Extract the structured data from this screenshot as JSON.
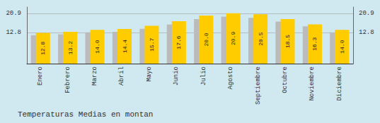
{
  "chart_data": {
    "type": "bar",
    "title": "Temperaturas Medias en montan",
    "categories": [
      "Enero",
      "Febrero",
      "Marzo",
      "Abril",
      "Mayo",
      "Junio",
      "Julio",
      "Agosto",
      "Septiembre",
      "Octubre",
      "Noviembre",
      "Diciembre"
    ],
    "series": [
      {
        "color": "#BBBBBB",
        "values": [
          11.8,
          12.2,
          13.0,
          13.2,
          14.5,
          16.2,
          18.5,
          19.5,
          19.0,
          17.5,
          15.5,
          13.0
        ]
      },
      {
        "color": "#FFCC00",
        "values": [
          12.8,
          13.2,
          14.0,
          14.4,
          15.7,
          17.6,
          20.0,
          20.9,
          20.5,
          18.5,
          16.3,
          14.0
        ],
        "data_labels": true,
        "value_labels": [
          "12.8",
          "13.2",
          "14.0",
          "14.4",
          "15.7",
          "17.6",
          "20.0",
          "20.9",
          "20.5",
          "18.5",
          "16.3",
          "14.0"
        ]
      }
    ],
    "ylim": [
      0.0,
      23.5
    ],
    "yticks": [
      12.8,
      20.9
    ],
    "y2lim": [
      0.0,
      23.5
    ],
    "y2ticks": [
      12.8,
      20.9
    ],
    "grid": true
  }
}
